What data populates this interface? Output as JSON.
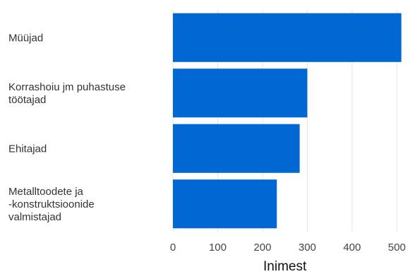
{
  "chart_data": {
    "type": "bar",
    "orientation": "horizontal",
    "categories": [
      [
        "Müüjad"
      ],
      [
        "Korrashoiu jm puhastuse",
        "töötajad"
      ],
      [
        "Ehitajad"
      ],
      [
        "Metalltoodete ja",
        "-konstruktsioonide",
        "valmistajad"
      ]
    ],
    "values": [
      510,
      300,
      283,
      232
    ],
    "xlabel": "Inimest",
    "xlim": [
      0,
      520
    ],
    "xticks": [
      0,
      100,
      200,
      300,
      400,
      500
    ],
    "grid": "vertical",
    "bar_color": "#0067d3"
  }
}
